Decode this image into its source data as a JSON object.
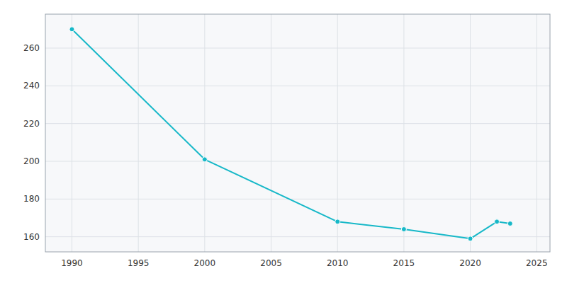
{
  "chart_data": {
    "type": "line",
    "x": [
      1990,
      2000,
      2010,
      2015,
      2020,
      2022,
      2023
    ],
    "values": [
      270,
      201,
      168,
      164,
      159,
      168,
      167
    ],
    "color": "#17B8C8",
    "marker": "circle",
    "xlim": [
      1988,
      2026
    ],
    "ylim": [
      152,
      278
    ],
    "xticks": [
      1990,
      1995,
      2000,
      2005,
      2010,
      2015,
      2020,
      2025
    ],
    "yticks": [
      160,
      180,
      200,
      220,
      240,
      260
    ],
    "grid": true
  }
}
